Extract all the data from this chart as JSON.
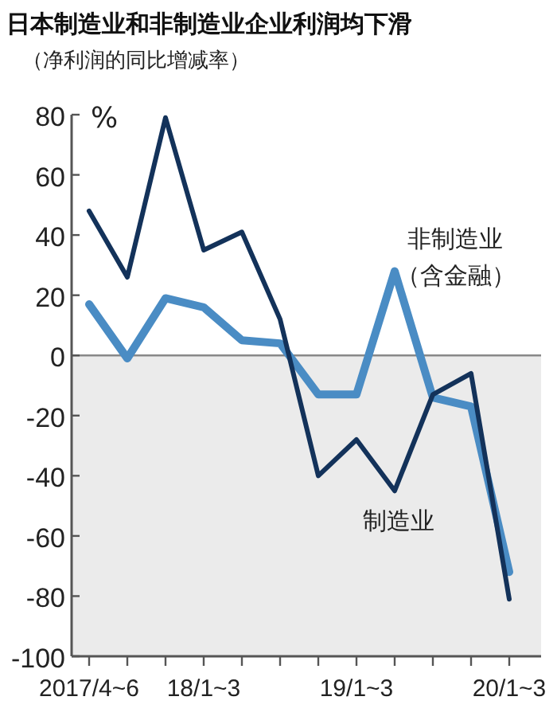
{
  "chart_data": {
    "type": "line",
    "title": "日本制造业和非制造业企业利润均下滑",
    "subtitle": "（净利润的同比增减率）",
    "ylabel": "%",
    "categories": [
      "2017/4~6",
      null,
      null,
      "18/1~3",
      null,
      null,
      null,
      "19/1~3",
      null,
      null,
      null,
      "20/1~3"
    ],
    "series": [
      {
        "name": "非制造业（含金融）",
        "color": "#4a8cc4",
        "values": [
          17,
          -1,
          19,
          16,
          5,
          4,
          -13,
          -13,
          28,
          -14,
          -17,
          -72
        ]
      },
      {
        "name": "制造业",
        "color": "#13325a",
        "values": [
          48,
          26,
          79,
          35,
          41,
          12,
          -40,
          -28,
          -45,
          -13,
          -6,
          -81
        ]
      }
    ],
    "ylim": [
      -100,
      80
    ],
    "yticks": [
      -100,
      -80,
      -60,
      -40,
      -20,
      0,
      20,
      40,
      60,
      80
    ],
    "bands": [
      {
        "axis": "y",
        "from": -100,
        "to": 0,
        "color": "#ebebeb"
      }
    ],
    "ref_lines": [
      {
        "axis": "y",
        "value": 0,
        "color": "#888888"
      }
    ],
    "grid": false,
    "marker": "none",
    "line_style": "solid"
  }
}
